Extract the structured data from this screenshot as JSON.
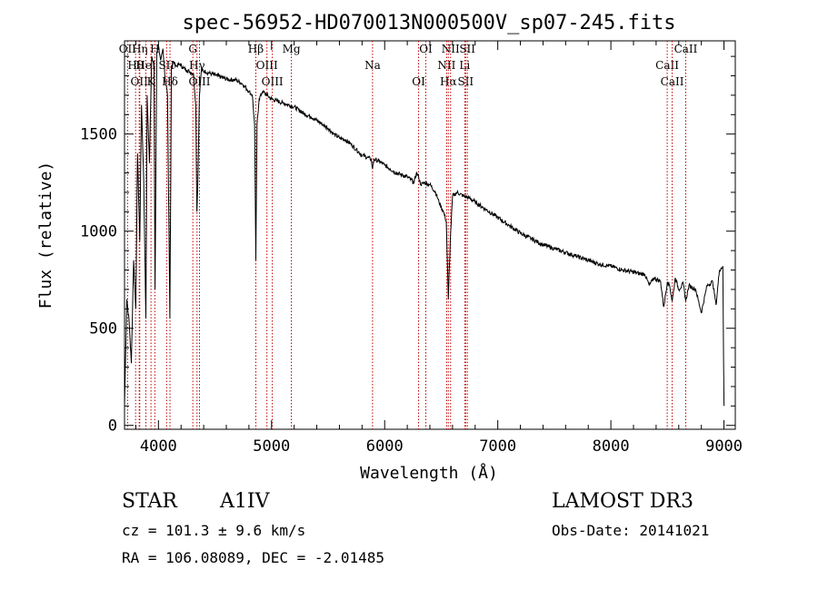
{
  "chart_data": {
    "type": "line",
    "title": "spec-56952-HD070013N000500V_sp07-245.fits",
    "xlabel": "Wavelength (Å)",
    "ylabel": "Flux (relative)",
    "xlim": [
      3700,
      9100
    ],
    "ylim": [
      -20,
      1980
    ],
    "x_ticks": [
      4000,
      5000,
      6000,
      7000,
      8000,
      9000
    ],
    "y_ticks": [
      0,
      500,
      1000,
      1500
    ],
    "series": [
      {
        "name": "spectrum",
        "x": [
          3700,
          3720,
          3740,
          3760,
          3780,
          3800,
          3815,
          3835,
          3850,
          3870,
          3889,
          3900,
          3920,
          3940,
          3960,
          3970,
          3985,
          4000,
          4020,
          4040,
          4060,
          4080,
          4101,
          4115,
          4130,
          4160,
          4190,
          4220,
          4250,
          4280,
          4310,
          4330,
          4340,
          4350,
          4362,
          4380,
          4420,
          4470,
          4520,
          4570,
          4620,
          4680,
          4740,
          4800,
          4830,
          4850,
          4861,
          4872,
          4890,
          4920,
          4960,
          5000,
          5050,
          5100,
          5150,
          5200,
          5250,
          5300,
          5350,
          5400,
          5450,
          5500,
          5550,
          5600,
          5650,
          5700,
          5750,
          5800,
          5850,
          5880,
          5893,
          5905,
          5950,
          6000,
          6050,
          6100,
          6150,
          6200,
          6260,
          6280,
          6300,
          6320,
          6350,
          6400,
          6450,
          6480,
          6520,
          6545,
          6563,
          6580,
          6600,
          6640,
          6700,
          6750,
          6800,
          6900,
          7000,
          7100,
          7200,
          7300,
          7400,
          7500,
          7600,
          7700,
          7800,
          7900,
          8000,
          8100,
          8200,
          8260,
          8300,
          8340,
          8380,
          8440,
          8467,
          8500,
          8520,
          8542,
          8570,
          8600,
          8640,
          8662,
          8690,
          8750,
          8800,
          8850,
          8900,
          8930,
          8960,
          8990,
          9000
        ],
        "y": [
          100,
          650,
          540,
          320,
          850,
          600,
          1400,
          950,
          1650,
          1250,
          550,
          1700,
          1350,
          1900,
          1850,
          700,
          1920,
          1950,
          1880,
          1940,
          1780,
          1700,
          550,
          1850,
          1870,
          1850,
          1860,
          1840,
          1830,
          1820,
          1810,
          1650,
          1100,
          1300,
          1700,
          1830,
          1820,
          1810,
          1800,
          1790,
          1780,
          1780,
          1760,
          1720,
          1700,
          1550,
          850,
          1550,
          1680,
          1720,
          1700,
          1680,
          1670,
          1660,
          1650,
          1640,
          1620,
          1600,
          1590,
          1570,
          1550,
          1530,
          1500,
          1480,
          1470,
          1450,
          1420,
          1390,
          1380,
          1370,
          1320,
          1370,
          1360,
          1340,
          1320,
          1300,
          1290,
          1280,
          1250,
          1300,
          1280,
          1240,
          1250,
          1240,
          1200,
          1150,
          1100,
          1050,
          650,
          950,
          1180,
          1200,
          1180,
          1170,
          1150,
          1110,
          1070,
          1030,
          990,
          960,
          930,
          910,
          890,
          870,
          850,
          830,
          820,
          800,
          790,
          780,
          780,
          720,
          760,
          740,
          610,
          740,
          720,
          640,
          760,
          700,
          730,
          640,
          720,
          700,
          580,
          720,
          740,
          620,
          800,
          820,
          100
        ]
      }
    ],
    "spectral_lines": [
      {
        "name": "OII",
        "wl": 3727
      },
      {
        "name": "Hθ",
        "wl": 3798
      },
      {
        "name": "OII",
        "wl": 3830
      },
      {
        "name": "Hη",
        "wl": 3835
      },
      {
        "name": "HeI",
        "wl": 3889
      },
      {
        "name": "K",
        "wl": 3934
      },
      {
        "name": "H",
        "wl": 3968
      },
      {
        "name": "SII",
        "wl": 4072
      },
      {
        "name": "Hδ",
        "wl": 4102
      },
      {
        "name": "G",
        "wl": 4304
      },
      {
        "name": "Hγ",
        "wl": 4341
      },
      {
        "name": "OIII",
        "wl": 4363
      },
      {
        "name": "Hβ",
        "wl": 4861
      },
      {
        "name": "OIII",
        "wl": 4959
      },
      {
        "name": "OIII",
        "wl": 5007
      },
      {
        "name": "Mg",
        "wl": 5175
      },
      {
        "name": "Na",
        "wl": 5893
      },
      {
        "name": "OI",
        "wl": 6300
      },
      {
        "name": "OI",
        "wl": 6364
      },
      {
        "name": "NII",
        "wl": 6548
      },
      {
        "name": "Hα",
        "wl": 6563
      },
      {
        "name": "NII",
        "wl": 6583
      },
      {
        "name": "Li",
        "wl": 6708
      },
      {
        "name": "SII",
        "wl": 6716
      },
      {
        "name": "SII",
        "wl": 6731
      },
      {
        "name": "CaII",
        "wl": 8498
      },
      {
        "name": "CaII",
        "wl": 8542
      },
      {
        "name": "CaII",
        "wl": 8662
      }
    ]
  },
  "info": {
    "object_class": "STAR",
    "subclass": "A1IV",
    "survey": "LAMOST DR3",
    "cz": "cz = 101.3 ± 9.6 km/s",
    "obs_date": "Obs-Date: 20141021",
    "radec": "RA = 106.08089, DEC =  -2.01485"
  }
}
